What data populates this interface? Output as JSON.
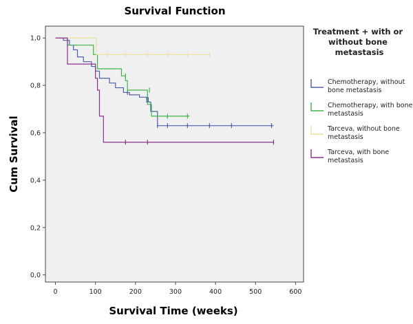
{
  "chart_data": {
    "type": "line",
    "subtype": "kaplan-meier-step",
    "title": "Survival Function",
    "xlabel": "Survival Time (weeks)",
    "ylabel": "Cum Survival",
    "xlim": [
      -25,
      620
    ],
    "ylim": [
      -0.03,
      1.05
    ],
    "xticks": [
      0,
      100,
      200,
      300,
      400,
      500,
      600
    ],
    "xtick_labels": [
      "0",
      "100",
      "200",
      "300",
      "400",
      "500",
      "600"
    ],
    "yticks": [
      0,
      0.2,
      0.4,
      0.6,
      0.8,
      1.0
    ],
    "ytick_labels": [
      "0,0",
      "0,2",
      "0,4",
      "0,6",
      "0,8",
      "1,0"
    ],
    "grid": false,
    "plot_background": "#f0f0f0",
    "legend": {
      "title": "Treatment + with or without bone metastasis",
      "placement": "right"
    },
    "series": [
      {
        "name": "Chemotherapy, without bone metastasis",
        "color": "#4a5fa8",
        "steps": [
          [
            0,
            1.0
          ],
          [
            20,
            0.99
          ],
          [
            35,
            0.97
          ],
          [
            45,
            0.95
          ],
          [
            55,
            0.92
          ],
          [
            70,
            0.9
          ],
          [
            90,
            0.88
          ],
          [
            100,
            0.86
          ],
          [
            110,
            0.83
          ],
          [
            135,
            0.81
          ],
          [
            150,
            0.79
          ],
          [
            170,
            0.77
          ],
          [
            185,
            0.76
          ],
          [
            210,
            0.75
          ],
          [
            228,
            0.73
          ],
          [
            238,
            0.69
          ],
          [
            255,
            0.63
          ],
          [
            545,
            0.63
          ]
        ],
        "censored": [
          [
            180,
            0.77
          ],
          [
            230,
            0.75
          ],
          [
            232,
            0.74
          ],
          [
            255,
            0.63
          ],
          [
            280,
            0.63
          ],
          [
            330,
            0.63
          ],
          [
            385,
            0.63
          ],
          [
            440,
            0.63
          ],
          [
            540,
            0.63
          ]
        ]
      },
      {
        "name": "Chemotherapy, with bone metastasis",
        "color": "#3cb44b",
        "steps": [
          [
            0,
            1.0
          ],
          [
            30,
            0.97
          ],
          [
            95,
            0.93
          ],
          [
            105,
            0.87
          ],
          [
            165,
            0.84
          ],
          [
            175,
            0.82
          ],
          [
            180,
            0.78
          ],
          [
            230,
            0.72
          ],
          [
            240,
            0.67
          ],
          [
            335,
            0.67
          ]
        ],
        "censored": [
          [
            175,
            0.84
          ],
          [
            235,
            0.78
          ],
          [
            280,
            0.67
          ],
          [
            330,
            0.67
          ]
        ]
      },
      {
        "name": "Tarceva, without bone metastasis",
        "color": "#e8e29a",
        "steps": [
          [
            0,
            1.0
          ],
          [
            100,
            1.0
          ],
          [
            102,
            0.93
          ],
          [
            385,
            0.93
          ]
        ],
        "censored": [
          [
            130,
            0.93
          ],
          [
            175,
            0.93
          ],
          [
            230,
            0.93
          ],
          [
            280,
            0.93
          ],
          [
            330,
            0.93
          ],
          [
            385,
            0.93
          ]
        ]
      },
      {
        "name": "Tarceva, with bone metastasis",
        "color": "#8b2f8b",
        "steps": [
          [
            0,
            1.0
          ],
          [
            30,
            0.89
          ],
          [
            95,
            0.89
          ],
          [
            100,
            0.83
          ],
          [
            105,
            0.78
          ],
          [
            110,
            0.67
          ],
          [
            120,
            0.56
          ],
          [
            545,
            0.56
          ]
        ],
        "censored": [
          [
            175,
            0.56
          ],
          [
            230,
            0.56
          ],
          [
            545,
            0.56
          ]
        ]
      }
    ]
  }
}
